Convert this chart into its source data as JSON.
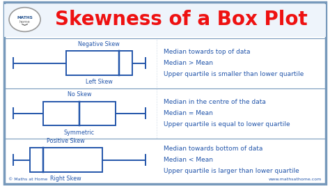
{
  "title": "Skewness of a Box Plot",
  "title_color": "#EE1111",
  "background_color": "#FFFFFF",
  "border_color": "#7799BB",
  "box_color": "#2255AA",
  "text_color": "#2255AA",
  "label_color": "#2255AA",
  "rows": [
    {
      "label_top": "Negative Skew",
      "label_bottom": "Left Skew",
      "wl": 0.04,
      "wr": 0.44,
      "bl": 0.2,
      "br": 0.4,
      "med": 0.36,
      "desc": [
        "Median towards top of data",
        "Median > Mean",
        "Upper quartile is smaller than lower quartile"
      ]
    },
    {
      "label_top": "No Skew",
      "label_bottom": "Symmetric",
      "wl": 0.04,
      "wr": 0.44,
      "bl": 0.13,
      "br": 0.35,
      "med": 0.24,
      "desc": [
        "Median in the centre of the data",
        "Median = Mean",
        "Upper quartile is equal to lower quartile"
      ]
    },
    {
      "label_top": "Positive Skew",
      "label_bottom": "Right Skew",
      "wl": 0.04,
      "wr": 0.44,
      "bl": 0.09,
      "br": 0.31,
      "med": 0.13,
      "desc": [
        "Median towards bottom of data",
        "Median < Mean",
        "Upper quartile is larger than lower quartile"
      ]
    }
  ],
  "copyright": "© Maths at Home",
  "website": "www.mathsathome.com",
  "title_fontsize": 20,
  "label_fontsize": 5.8,
  "desc_fontsize": 6.5,
  "footer_fontsize": 4.5
}
